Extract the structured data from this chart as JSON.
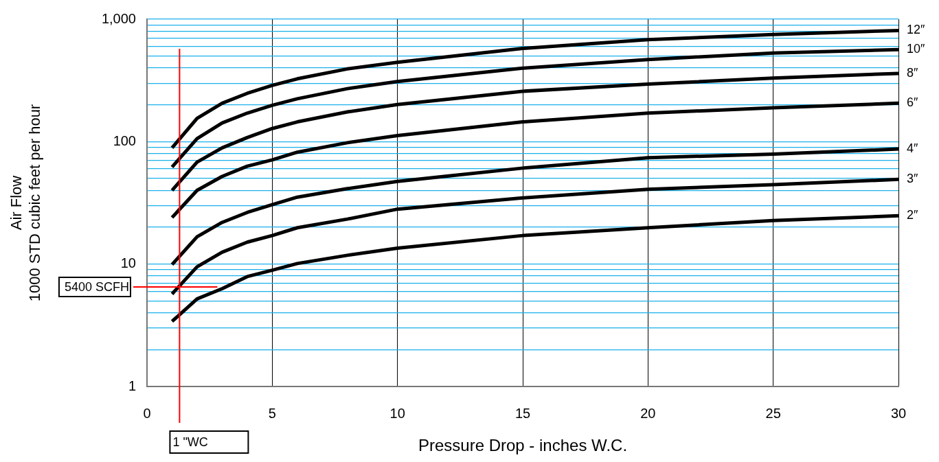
{
  "chart_data": {
    "type": "line",
    "xlabel": "Pressure Drop - inches W.C.",
    "ylabel": "Air Flow\n1000 STD cubic feet per hour",
    "log": "y",
    "grid": true,
    "legend": false,
    "marker": "none",
    "line_style": "solid",
    "x": [
      1,
      2,
      3,
      4,
      5,
      6,
      8,
      10,
      15,
      20,
      25,
      30
    ],
    "xlim": [
      0,
      30
    ],
    "xticks": [
      0,
      5,
      10,
      15,
      20,
      25,
      30
    ],
    "ylim": [
      1,
      1000
    ],
    "yticks": [
      1,
      {
        "value": 2,
        "label": null
      },
      {
        "value": 3,
        "label": null
      },
      {
        "value": 4,
        "label": null
      },
      {
        "value": 5,
        "label": null
      },
      {
        "value": 6,
        "label": null
      },
      {
        "value": 7,
        "label": null
      },
      {
        "value": 8,
        "label": null
      },
      {
        "value": 9,
        "label": null
      },
      10,
      {
        "value": 20,
        "label": null
      },
      {
        "value": 30,
        "label": null
      },
      {
        "value": 40,
        "label": null
      },
      {
        "value": 50,
        "label": null
      },
      {
        "value": 60,
        "label": null
      },
      {
        "value": 70,
        "label": null
      },
      {
        "value": 80,
        "label": null
      },
      {
        "value": 90,
        "label": null
      },
      100,
      {
        "value": 200,
        "label": null
      },
      {
        "value": 300,
        "label": null
      },
      {
        "value": 400,
        "label": null
      },
      {
        "value": 500,
        "label": null
      },
      {
        "value": 600,
        "label": null
      },
      {
        "value": 700,
        "label": null
      },
      {
        "value": 800,
        "label": null
      },
      {
        "value": 900,
        "label": null
      },
      {
        "value": 1000,
        "label": "1,000"
      }
    ],
    "series": [
      {
        "name": "12″",
        "color": "#000000",
        "values": [
          89,
          155,
          206,
          248,
          288,
          326,
          393,
          445,
          578,
          680,
          751,
          809
        ]
      },
      {
        "name": "10″",
        "color": "#000000",
        "values": [
          62,
          106,
          142,
          171,
          198,
          224,
          271,
          310,
          398,
          468,
          530,
          564
        ]
      },
      {
        "name": "8″",
        "color": "#000000",
        "values": [
          40,
          68,
          89,
          108,
          128,
          145,
          175,
          201,
          258,
          295,
          330,
          361
        ]
      },
      {
        "name": "6″",
        "color": "#000000",
        "values": [
          24,
          40,
          52,
          63,
          71,
          82,
          98,
          112,
          145,
          171,
          189,
          206
        ]
      },
      {
        "name": "4″",
        "color": "#000000",
        "values": [
          9.9,
          16.7,
          21.9,
          26.4,
          30.6,
          35.2,
          41.3,
          47.4,
          60.8,
          74,
          79,
          87
        ]
      },
      {
        "name": "3″",
        "color": "#000000",
        "values": [
          5.7,
          9.5,
          12.5,
          15.1,
          17.1,
          19.8,
          23.3,
          28.1,
          34.7,
          40.8,
          44.5,
          49.2
        ]
      },
      {
        "name": "2″",
        "color": "#000000",
        "values": [
          3.4,
          5.2,
          6.3,
          7.9,
          8.9,
          10.1,
          11.8,
          13.5,
          17.1,
          19.8,
          22.7,
          24.8
        ]
      }
    ],
    "ref_lines": [
      {
        "axis": "x",
        "value": 1.3,
        "label": "1 \"WC",
        "color": "#ff0000"
      },
      {
        "axis": "y",
        "value": 6.5,
        "label": "5400 SCFH",
        "color": "#ff0000"
      }
    ]
  }
}
